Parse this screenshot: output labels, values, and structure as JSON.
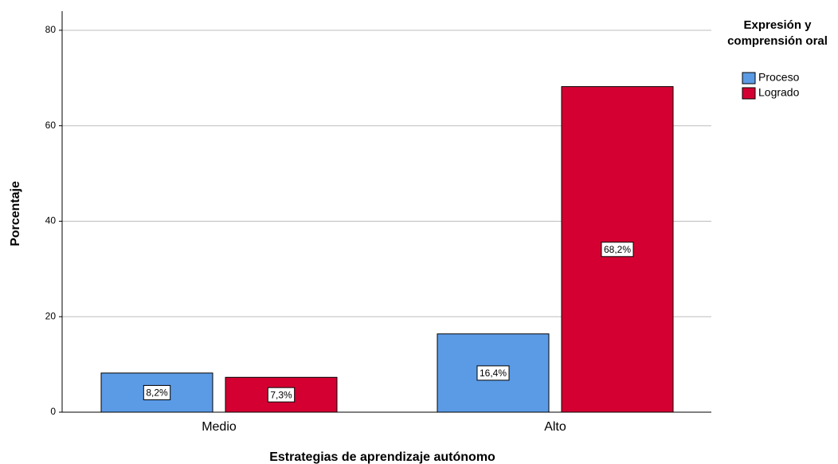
{
  "chart_data": {
    "type": "bar",
    "x_label": "Estrategias de aprendizaje autónomo",
    "y_label": "Porcentaje",
    "legend_title": "Expresión y comprensión oral",
    "categories": [
      "Medio",
      "Alto"
    ],
    "series": [
      {
        "name": "Proceso",
        "color": "#5b9be6",
        "values": [
          8.2,
          16.4
        ],
        "value_labels": [
          "8,2%",
          "16,4%"
        ]
      },
      {
        "name": "Logrado",
        "color": "#d50032",
        "values": [
          7.3,
          68.2
        ],
        "value_labels": [
          "7,3%",
          "68,2%"
        ]
      }
    ],
    "ylim": [
      0,
      84
    ],
    "yticks": [
      0,
      20,
      40,
      60,
      80
    ],
    "grid": true,
    "legend": "right"
  }
}
